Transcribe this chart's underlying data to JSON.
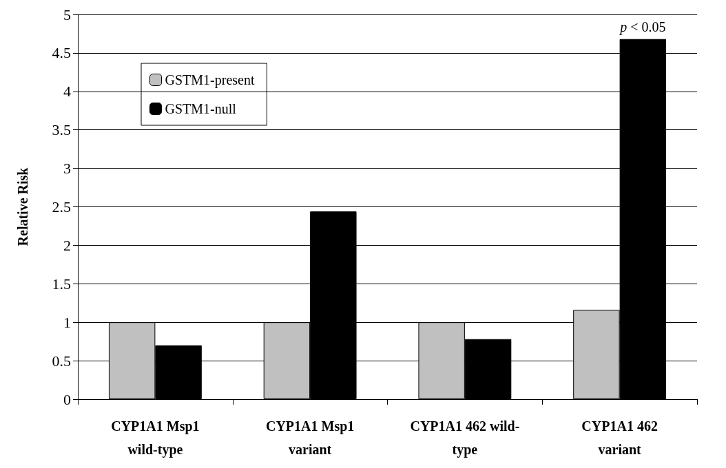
{
  "chart_data": {
    "type": "bar",
    "ylabel": "Relative Risk",
    "categories": [
      "CYP1A1 Msp1\nwild-type",
      "CYP1A1 Msp1\nvariant",
      "CYP1A1 462 wild-\ntype",
      "CYP1A1 462\nvariant"
    ],
    "series": [
      {
        "name": "GSTM1-present",
        "color": "#c0c0c0",
        "values": [
          1.0,
          1.0,
          1.0,
          1.16
        ]
      },
      {
        "name": "GSTM1-null",
        "color": "#000000",
        "values": [
          0.7,
          2.44,
          0.78,
          4.68
        ]
      }
    ],
    "ylim": [
      0,
      5
    ],
    "yticks": [
      0,
      0.5,
      1,
      1.5,
      2,
      2.5,
      3,
      3.5,
      4,
      4.5,
      5
    ],
    "grid": "y",
    "legend": "top left",
    "annotations": [
      {
        "text": "p < 0.05",
        "x": "CYP1A1 462\nvariant",
        "y": 4.68
      }
    ]
  }
}
